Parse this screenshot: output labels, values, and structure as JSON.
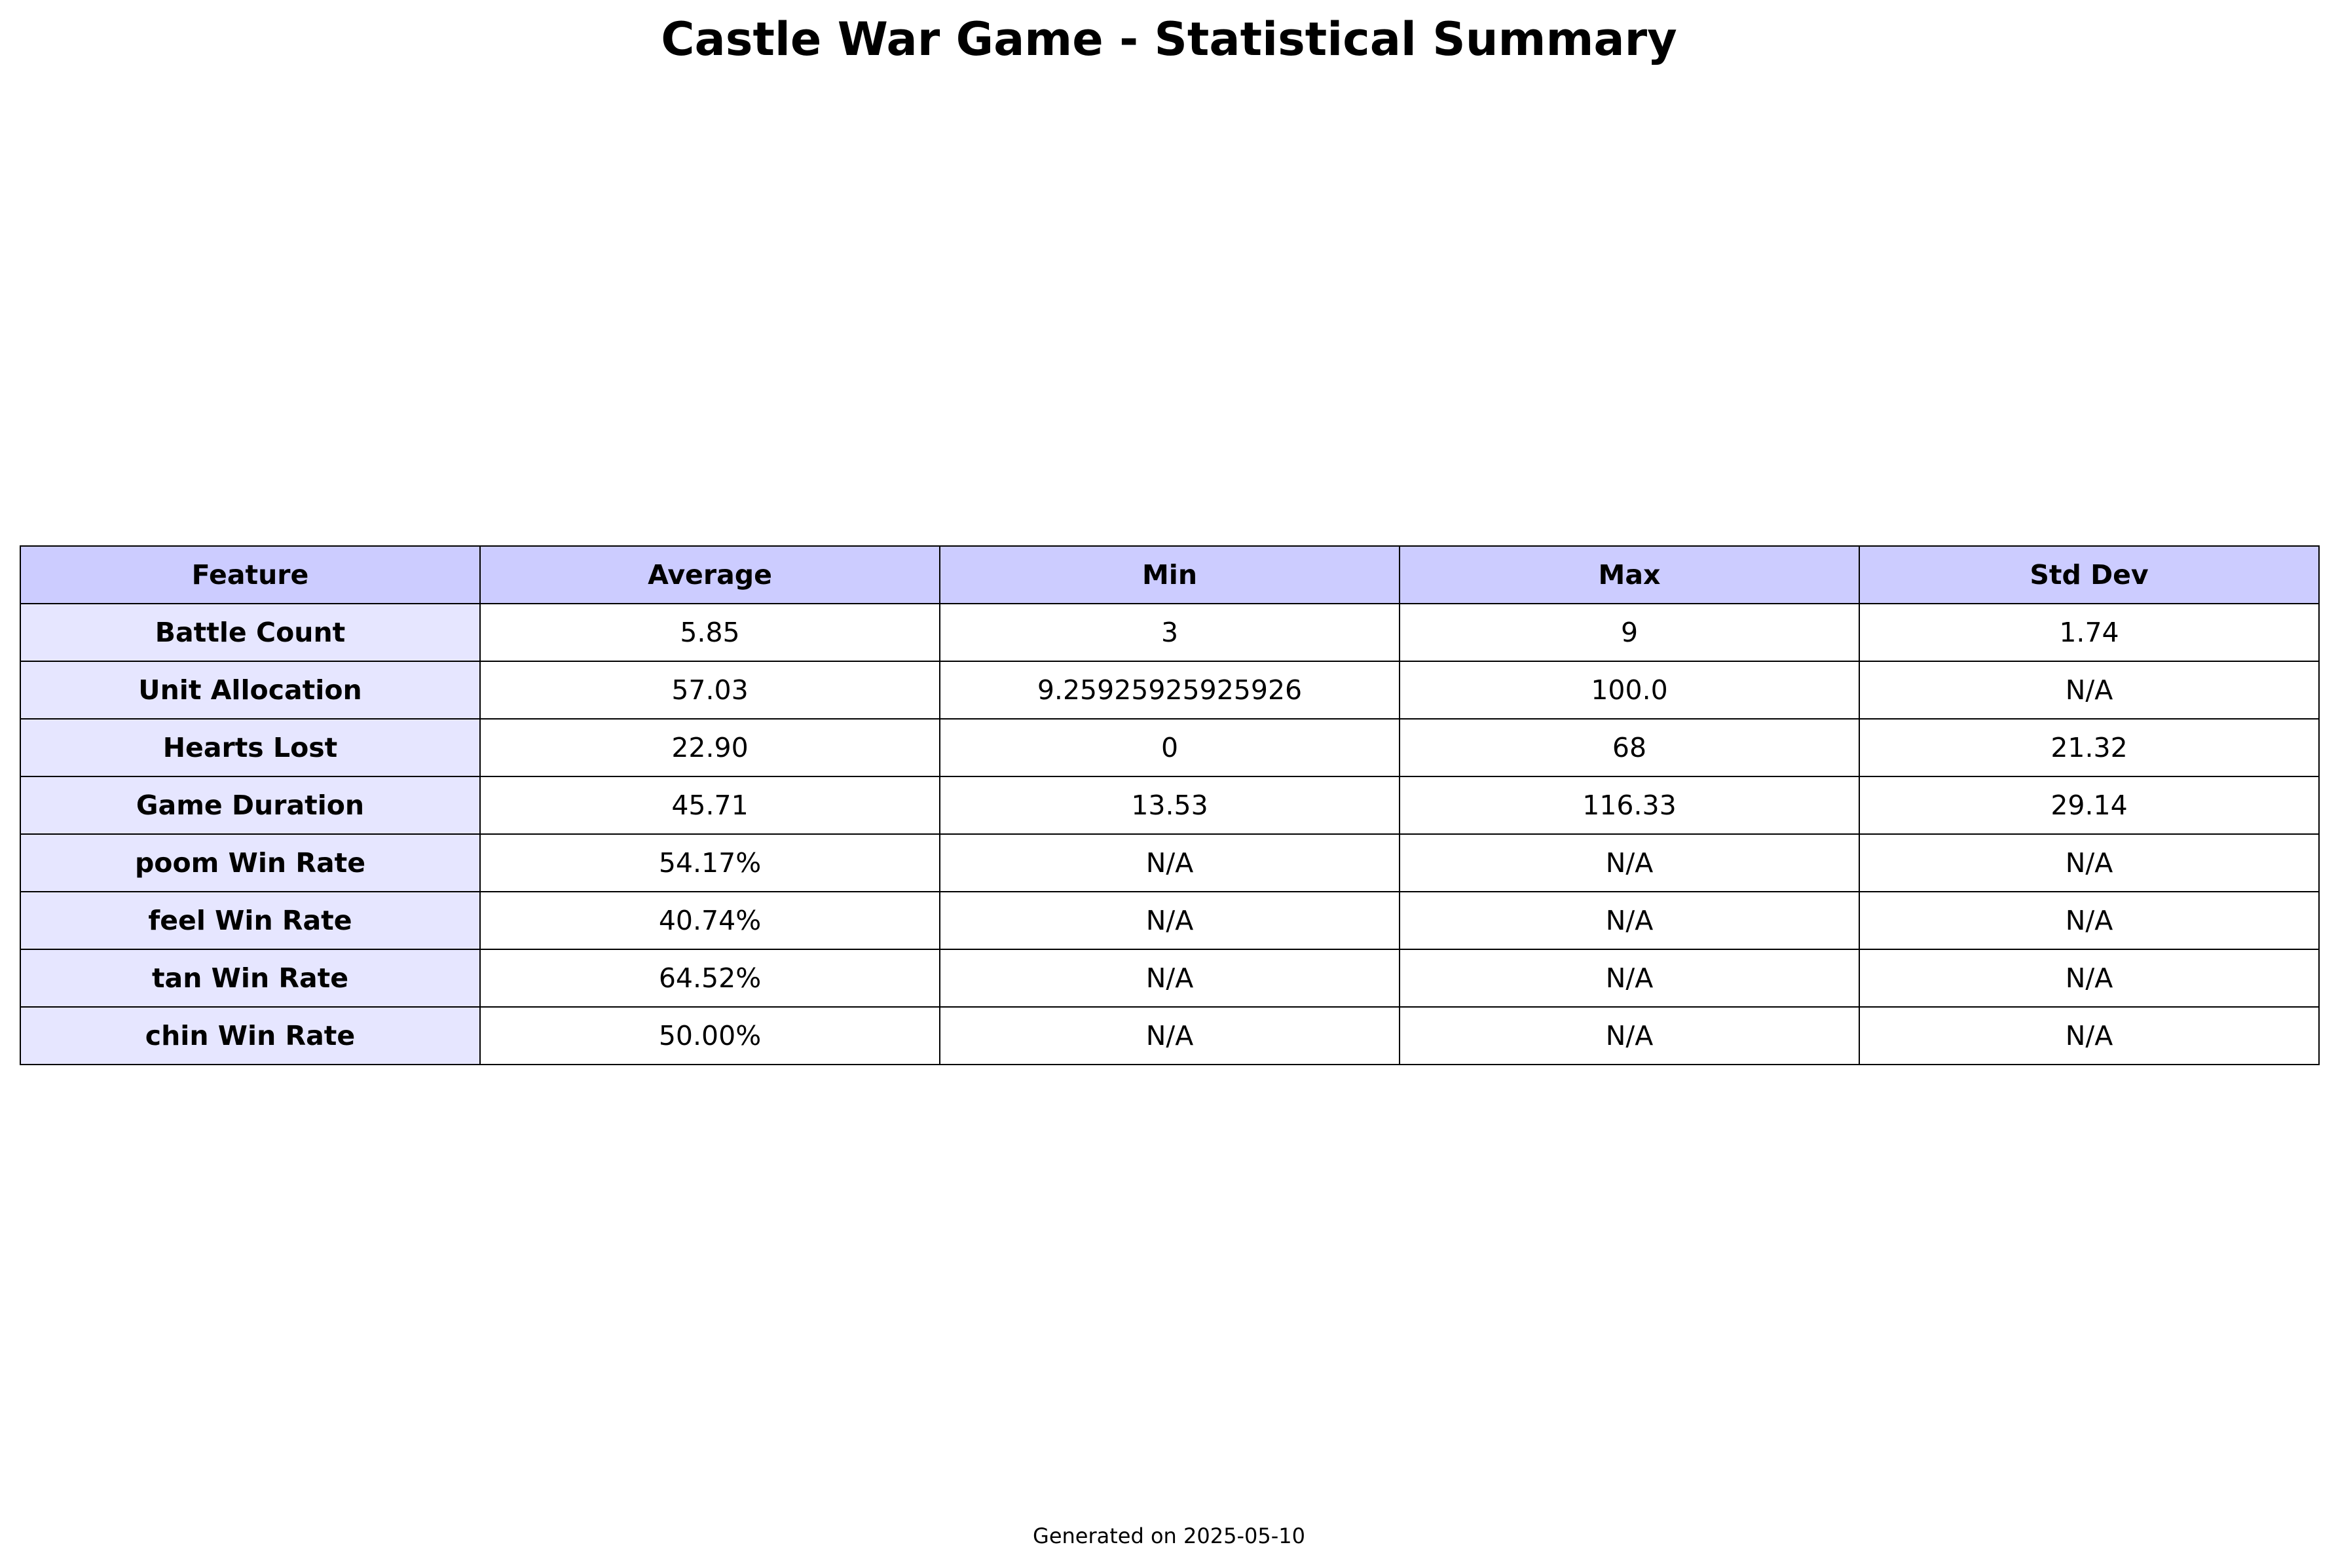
{
  "chart_data": {
    "type": "table",
    "title": "Castle War Game - Statistical Summary",
    "columns": [
      "Feature",
      "Average",
      "Min",
      "Max",
      "Std Dev"
    ],
    "rows": [
      [
        "Battle Count",
        "5.85",
        "3",
        "9",
        "1.74"
      ],
      [
        "Unit Allocation",
        "57.03",
        "9.25925925925926",
        "100.0",
        "N/A"
      ],
      [
        "Hearts Lost",
        "22.90",
        "0",
        "68",
        "21.32"
      ],
      [
        "Game Duration",
        "45.71",
        "13.53",
        "116.33",
        "29.14"
      ],
      [
        "poom Win Rate",
        "54.17%",
        "N/A",
        "N/A",
        "N/A"
      ],
      [
        "feel Win Rate",
        "40.74%",
        "N/A",
        "N/A",
        "N/A"
      ],
      [
        "tan Win Rate",
        "64.52%",
        "N/A",
        "N/A",
        "N/A"
      ],
      [
        "chin Win Rate",
        "50.00%",
        "N/A",
        "N/A",
        "N/A"
      ]
    ],
    "colors": {
      "header_background": "#ccccff",
      "row_label_background": "#e6e6ff",
      "cell_background": "#ffffff",
      "border": "#000000"
    }
  },
  "footer": "Generated on 2025-05-10"
}
